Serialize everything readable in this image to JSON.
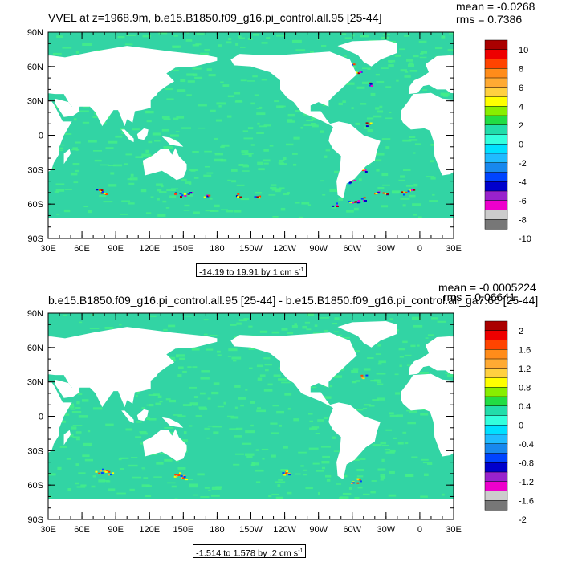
{
  "panels": [
    {
      "title": "VVEL at z=1968.9m, b.e15.B1850.f09_g16.pi_control.all.95 [25-44]",
      "mean": "mean = -0.0268",
      "rms": "rms = 0.7386",
      "range": "-14.19 to 19.91 by 1 cm s",
      "range_sup": "-1",
      "lat_labels": [
        "90N",
        "60N",
        "30N",
        "0",
        "30S",
        "60S",
        "90S"
      ],
      "lon_labels": [
        "30E",
        "60E",
        "90E",
        "120E",
        "150E",
        "180",
        "150W",
        "120W",
        "90W",
        "60W",
        "30W",
        "0",
        "30E"
      ],
      "colorbar_labels": [
        "10",
        "8",
        "6",
        "4",
        "2",
        "0",
        "-2",
        "-4",
        "-6",
        "-8",
        "-10"
      ]
    },
    {
      "title": "b.e15.B1850.f09_g16.pi_control.all.95 [25-44] - b.e15.B1850.f09_g16.pi_control.all_ga7.66 [25-44]",
      "mean": "mean = -0.0005224",
      "rms": "rms = 0.06641",
      "range": "-1.514 to 1.578 by .2 cm s",
      "range_sup": "-1",
      "lat_labels": [
        "90N",
        "60N",
        "30N",
        "0",
        "30S",
        "60S",
        "90S"
      ],
      "lon_labels": [
        "30E",
        "60E",
        "90E",
        "120E",
        "150E",
        "180",
        "150W",
        "120W",
        "90W",
        "60W",
        "30W",
        "0",
        "30E"
      ],
      "colorbar_labels": [
        "2",
        "1.6",
        "1.2",
        "0.8",
        "0.4",
        "0",
        "-0.4",
        "-0.8",
        "-1.2",
        "-1.6",
        "-2"
      ]
    }
  ],
  "colors": {
    "ocean_base": "#32d4a4",
    "ocean_mottle": "#44ee88",
    "land": "#ffffff",
    "colorbar": [
      "#aa0000",
      "#ee0000",
      "#ff4400",
      "#ff8c1a",
      "#ffaa33",
      "#ffd040",
      "#ffff00",
      "#88ee00",
      "#22dd44",
      "#22ddaa",
      "#33ffdd",
      "#00e0ff",
      "#20bbff",
      "#1888ee",
      "#0044ff",
      "#0000cc",
      "#9922cc",
      "#ee00cc",
      "#cccccc",
      "#777777"
    ]
  }
}
